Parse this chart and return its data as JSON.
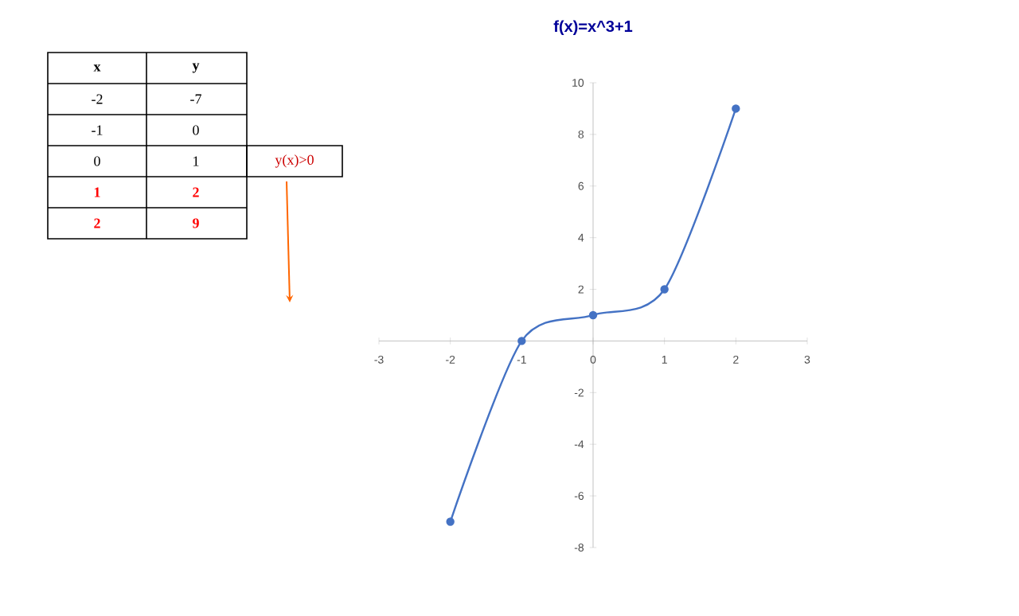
{
  "chart_data": {
    "type": "line",
    "title": "f(x)=x^3+1",
    "x": [
      -2,
      -1,
      0,
      1,
      2
    ],
    "series": [
      {
        "color": "#4472c4",
        "values": [
          -7,
          0,
          1,
          2,
          9
        ]
      }
    ],
    "xlim": [
      -3,
      3
    ],
    "xticks": [
      -3,
      -2,
      -1,
      0,
      1,
      2,
      3
    ],
    "ylim": [
      -8,
      10
    ],
    "yticks": [
      -8,
      -6,
      -4,
      -2,
      {
        "value": 0,
        "label": null
      },
      2,
      4,
      6,
      8,
      10
    ],
    "marker": "circle",
    "line_style": "solid",
    "grid": false,
    "annotations": [
      "x",
      "y",
      "-2",
      "-7",
      "-1",
      "0",
      "0",
      "1",
      "1",
      "2",
      "2",
      "9",
      "y(x)>0"
    ]
  }
}
